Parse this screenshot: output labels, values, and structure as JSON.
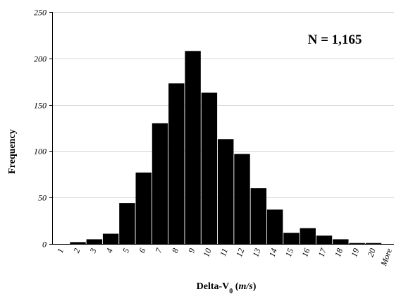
{
  "chart_data": {
    "type": "bar",
    "categories": [
      "1",
      "2",
      "3",
      "4",
      "5",
      "6",
      "7",
      "8",
      "9",
      "10",
      "11",
      "12",
      "13",
      "14",
      "15",
      "16",
      "17",
      "18",
      "19",
      "20",
      "More"
    ],
    "values": [
      0,
      2,
      5,
      11,
      44,
      77,
      130,
      173,
      208,
      163,
      113,
      97,
      60,
      37,
      12,
      17,
      9,
      5,
      1,
      1,
      0
    ],
    "title": "",
    "xlabel": "Delta-V",
    "xlabel_subscript": "0",
    "xlabel_unit_open": " (",
    "xlabel_unit": "m/s",
    "xlabel_unit_close": ")",
    "ylabel": "Frequency",
    "ylim": [
      0,
      250
    ],
    "yticks": [
      "0",
      "50",
      "100",
      "150",
      "200",
      "250"
    ],
    "annotation": "N = 1,165",
    "grid": true,
    "bar_color": "#000000",
    "grid_color": "#d6d6d6"
  }
}
